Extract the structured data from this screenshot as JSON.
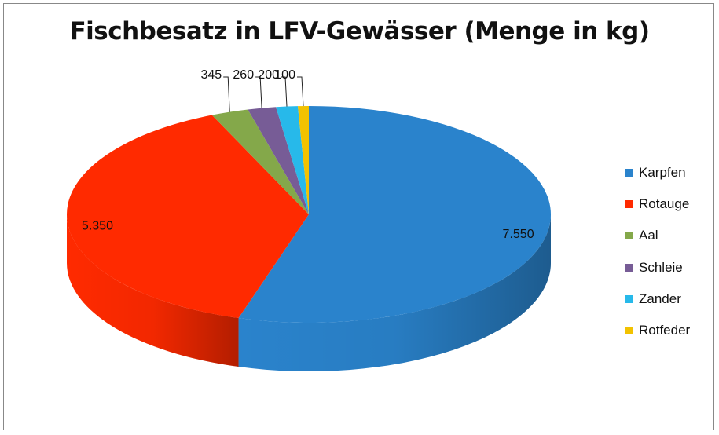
{
  "chart_data": {
    "type": "pie",
    "title": "Fischbesatz in LFV-Gewässer (Menge in kg)",
    "categories": [
      "Karpfen",
      "Rotauge",
      "Aal",
      "Schleie",
      "Zander",
      "Rotfeder"
    ],
    "values": [
      7550,
      5350,
      345,
      260,
      200,
      100
    ],
    "data_labels": [
      "7.550",
      "5.350",
      "345",
      "260",
      "200",
      "100"
    ],
    "colors": [
      "#2a83cc",
      "#ff2a00",
      "#84a84a",
      "#775c96",
      "#27b9ea",
      "#f2c200"
    ],
    "legend_position": "right",
    "style": "3d"
  }
}
